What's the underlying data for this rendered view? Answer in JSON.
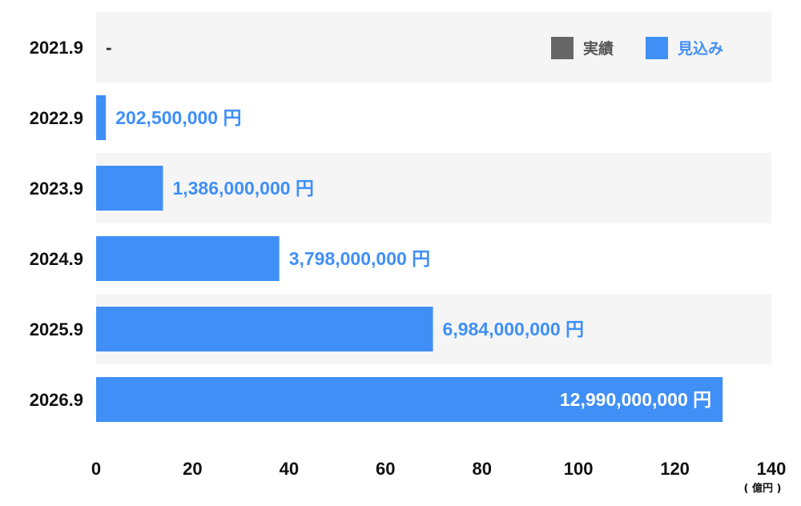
{
  "chart_data": {
    "type": "bar",
    "orientation": "horizontal",
    "categories": [
      "2021.9",
      "2022.9",
      "2023.9",
      "2024.9",
      "2025.9",
      "2026.9"
    ],
    "series": [
      {
        "name": "見込み",
        "values": [
          null,
          2.025,
          13.86,
          37.98,
          69.84,
          129.9
        ]
      }
    ],
    "data_labels": [
      "-",
      "202,500,000 円",
      "1,386,000,000 円",
      "3,798,000,000 円",
      "6,984,000,000 円",
      "12,990,000,000 円"
    ],
    "x_ticks": [
      "0",
      "20",
      "40",
      "60",
      "80",
      "100",
      "120",
      "140"
    ],
    "xlim": [
      0,
      140
    ],
    "x_unit": "( 億円 )",
    "legend": [
      {
        "name": "実績",
        "color": "#666666"
      },
      {
        "name": "見込み",
        "color": "#3f8ff7"
      }
    ],
    "legend_position": "top-right",
    "row_band_colors": [
      "#f5f5f5",
      "#ffffff"
    ],
    "colors": {
      "bar": "#3f8ff7",
      "label_blue": "#3f8ff7",
      "label_white": "#ffffff"
    }
  }
}
